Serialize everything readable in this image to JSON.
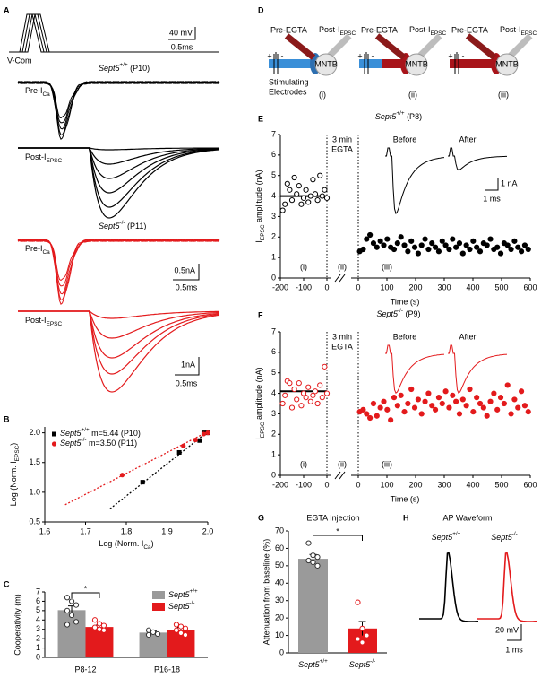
{
  "panel_labels": [
    "A",
    "B",
    "C",
    "D",
    "E",
    "F",
    "G",
    "H"
  ],
  "panel_a": {
    "vcom_label": "V-Com",
    "vcom_scale": [
      "40 mV",
      "0.5ms"
    ],
    "groups": [
      {
        "title": "Sept5+/+ (P10)",
        "pre_label": [
          "Pre-I",
          "Ca"
        ],
        "post_label": [
          "Post-I",
          "EPSC"
        ]
      },
      {
        "title": "Sept5-/- (P11)",
        "pre_label": [
          "Pre-I",
          "Ca"
        ],
        "pre_scale": [
          "0.5nA",
          "0.5ms"
        ],
        "post_label": [
          "Post-I",
          "EPSC"
        ],
        "post_scale": [
          "1nA",
          "0.5ms"
        ]
      }
    ]
  },
  "panel_d": {
    "pre_label": "Pre-EGTA",
    "post_label": [
      "Post-I",
      "EPSC"
    ],
    "cell_label": "MNTB",
    "polarity": [
      "+",
      "-"
    ],
    "stim_label": [
      "Stimulating",
      "Electrodes"
    ],
    "conditions": [
      "(i)",
      "(ii)",
      "(iii)"
    ]
  },
  "panel_h": {
    "title": "AP Waveform",
    "traces": [
      "Sept5+/+",
      "Sept5-/-"
    ],
    "scale": [
      "20 mV",
      "1 ms"
    ]
  },
  "chart_data": [
    {
      "type": "scatter",
      "xlabel": [
        "Log (Norm. I",
        "Ca",
        ")"
      ],
      "ylabel": [
        "Log (Norm. I",
        "EPSC",
        ")"
      ],
      "xlim": [
        1.6,
        2.0
      ],
      "xticks": [
        1.6,
        1.7,
        1.8,
        1.9,
        {
          "value": 2,
          "label": "2.0"
        }
      ],
      "ylim": [
        0.5,
        2.1
      ],
      "yticks": [
        0.5,
        {
          "value": 1,
          "label": "1.0"
        },
        1.5,
        {
          "value": 2,
          "label": "2.0"
        }
      ],
      "series": [
        {
          "name": "Sept5+/+ m=5.44 (P10)",
          "color": "#000000",
          "marker": "square",
          "x": [
            1.84,
            1.93,
            1.98,
            1.99,
            2.0
          ],
          "values": [
            1.17,
            1.67,
            1.87,
            2.0,
            2.0
          ],
          "fit": {
            "x": [
              1.76,
              2.0
            ],
            "values": [
              0.72,
              2.02
            ]
          }
        },
        {
          "name": "Sept5-/- m=3.50 (P11)",
          "color": "#e31a1c",
          "marker": "circle",
          "x": [
            1.79,
            1.94,
            1.97,
            1.99,
            2.0
          ],
          "values": [
            1.29,
            1.78,
            1.88,
            1.98,
            2.0
          ],
          "fit": {
            "x": [
              1.65,
              2.0
            ],
            "values": [
              0.79,
              2.02
            ]
          }
        }
      ]
    },
    {
      "type": "bar",
      "ylabel": "Cooperativity (m)",
      "categories": [
        "P8-12",
        "P16-18"
      ],
      "ylim": [
        0,
        7
      ],
      "yticks": [
        0,
        1,
        2,
        3,
        4,
        5,
        6,
        7
      ],
      "significance": "*",
      "legend": "top-right",
      "series": [
        {
          "name": "Sept5+/+",
          "color": "#9a9a9a",
          "values": [
            5.05,
            2.65
          ],
          "errors": [
            0.45,
            0.15
          ],
          "points": [
            [
              6.4,
              6.0,
              5.6,
              5.0,
              4.5,
              3.8,
              3.5
            ],
            [
              2.9,
              2.7,
              2.5,
              2.4
            ]
          ]
        },
        {
          "name": "Sept5-/-",
          "color": "#e31a1c",
          "values": [
            3.25,
            2.95
          ],
          "errors": [
            0.2,
            0.25
          ],
          "points": [
            [
              4.0,
              3.6,
              3.4,
              3.2,
              3.0,
              2.9
            ],
            [
              3.5,
              3.3,
              3.1,
              2.9,
              2.6,
              2.4
            ]
          ]
        }
      ]
    },
    {
      "type": "scatter",
      "title": "Sept5+/+ (P8)",
      "ylabel": [
        "I",
        "EPSC",
        " amplitude (nA)"
      ],
      "xlabel": "Time (s)",
      "ylim": [
        0,
        7
      ],
      "yticks": [
        0,
        1,
        2,
        3,
        4,
        5,
        6,
        7
      ],
      "segments": [
        {
          "xlim": [
            -200,
            0
          ],
          "xticks": [
            -200,
            -100,
            0
          ]
        },
        {
          "xlim": [
            0,
            600
          ],
          "xticks": [
            0,
            100,
            200,
            300,
            400,
            500,
            600
          ]
        }
      ],
      "mean": 4.0,
      "egta_label": [
        "3 min",
        "EGTA"
      ],
      "phases": [
        "(i)",
        "(ii)",
        "(iii)"
      ],
      "inset_labels": [
        "Before",
        "After"
      ],
      "inset_scale": [
        "1 nA",
        "1 ms"
      ],
      "series": [
        {
          "filled": false,
          "color": "#000000",
          "x": [
            -190,
            -180,
            -170,
            -160,
            -150,
            -140,
            -130,
            -120,
            -110,
            -100,
            -90,
            -80,
            -70,
            -60,
            -50,
            -40,
            -30,
            -20,
            -10,
            0
          ],
          "values": [
            3.3,
            3.6,
            4.6,
            4.3,
            3.8,
            4.9,
            4.1,
            4.5,
            3.6,
            3.9,
            4.3,
            3.7,
            4.0,
            4.8,
            4.1,
            3.8,
            5.0,
            4.0,
            4.3,
            3.9
          ]
        },
        {
          "filled": true,
          "color": "#000000",
          "x": [
            5,
            17,
            29,
            41,
            53,
            65,
            77,
            89,
            101,
            113,
            125,
            137,
            149,
            161,
            173,
            185,
            197,
            209,
            221,
            233,
            245,
            257,
            269,
            281,
            293,
            305,
            317,
            329,
            341,
            353,
            365,
            377,
            389,
            401,
            413,
            425,
            437,
            449,
            461,
            473,
            485,
            497,
            509,
            521,
            533,
            545,
            557,
            569,
            581,
            593
          ],
          "values": [
            1.3,
            1.4,
            1.9,
            2.1,
            1.7,
            1.5,
            1.8,
            1.6,
            1.9,
            1.5,
            1.4,
            1.7,
            2.0,
            1.6,
            1.3,
            1.8,
            1.5,
            1.2,
            1.6,
            1.9,
            1.4,
            1.7,
            1.5,
            1.3,
            1.8,
            1.6,
            1.4,
            1.9,
            1.5,
            1.7,
            1.2,
            1.6,
            1.4,
            1.8,
            1.5,
            1.3,
            1.7,
            1.6,
            1.9,
            1.4,
            1.5,
            1.2,
            1.7,
            1.6,
            1.4,
            1.8,
            1.5,
            1.3,
            1.6,
            1.4
          ]
        }
      ]
    },
    {
      "type": "scatter",
      "title": "Sept5-/- (P9)",
      "ylabel": [
        "I",
        "EPSC",
        " amplitude (nA)"
      ],
      "xlabel": "Time (s)",
      "ylim": [
        0,
        7
      ],
      "yticks": [
        0,
        1,
        2,
        3,
        4,
        5,
        6,
        7
      ],
      "segments": [
        {
          "xlim": [
            -200,
            0
          ],
          "xticks": [
            -200,
            -100,
            0
          ]
        },
        {
          "xlim": [
            0,
            600
          ],
          "xticks": [
            0,
            100,
            200,
            300,
            400,
            500,
            600
          ]
        }
      ],
      "mean": 4.1,
      "egta_label": [
        "3 min",
        "EGTA"
      ],
      "phases": [
        "(i)",
        "(ii)",
        "(iii)"
      ],
      "inset_labels": [
        "Before",
        "After"
      ],
      "series": [
        {
          "filled": false,
          "color": "#e31a1c",
          "x": [
            -190,
            -180,
            -170,
            -160,
            -150,
            -140,
            -130,
            -120,
            -110,
            -100,
            -90,
            -80,
            -70,
            -60,
            -50,
            -40,
            -30,
            -20,
            -10,
            0
          ],
          "values": [
            3.5,
            3.9,
            4.6,
            4.5,
            3.3,
            4.2,
            3.7,
            4.5,
            3.4,
            4.0,
            3.8,
            4.3,
            3.6,
            3.9,
            4.1,
            3.5,
            4.4,
            3.8,
            5.3,
            4.0
          ]
        },
        {
          "filled": true,
          "color": "#e31a1c",
          "x": [
            5,
            17,
            29,
            41,
            53,
            65,
            77,
            89,
            101,
            113,
            125,
            137,
            149,
            161,
            173,
            185,
            197,
            209,
            221,
            233,
            245,
            257,
            269,
            281,
            293,
            305,
            317,
            329,
            341,
            353,
            365,
            377,
            389,
            401,
            413,
            425,
            437,
            449,
            461,
            473,
            485,
            497,
            509,
            521,
            533,
            545,
            557,
            569,
            581,
            593
          ],
          "values": [
            3.1,
            3.2,
            3.0,
            2.8,
            3.5,
            2.9,
            3.3,
            3.6,
            3.2,
            2.7,
            3.8,
            3.4,
            3.9,
            3.1,
            3.5,
            4.2,
            3.3,
            3.7,
            3.0,
            3.6,
            4.0,
            3.4,
            3.2,
            3.8,
            3.5,
            4.1,
            3.3,
            3.9,
            3.6,
            3.0,
            3.7,
            3.4,
            4.2,
            3.1,
            3.8,
            3.5,
            3.3,
            2.9,
            3.6,
            4.0,
            3.2,
            3.8,
            3.5,
            4.4,
            3.0,
            3.7,
            3.3,
            4.1,
            3.4,
            3.1
          ]
        }
      ]
    },
    {
      "type": "bar",
      "title": "EGTA Injection",
      "ylabel": "Attenuation from baseline (%)",
      "categories": [
        "Sept5+/+",
        "Sept5-/-"
      ],
      "values": [
        54,
        14
      ],
      "errors": [
        2.5,
        4
      ],
      "colors": [
        "#9a9a9a",
        "#e31a1c"
      ],
      "points": [
        [
          63,
          56,
          55,
          53,
          52,
          50
        ],
        [
          29,
          14,
          10,
          8,
          6
        ]
      ],
      "ylim": [
        0,
        70
      ],
      "yticks": [
        0,
        10,
        20,
        30,
        40,
        50,
        60,
        70
      ],
      "significance": "*"
    }
  ]
}
